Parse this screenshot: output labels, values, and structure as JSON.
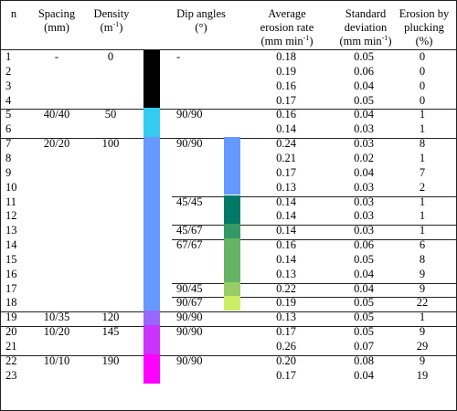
{
  "headers": {
    "n": "n",
    "spacing": [
      "Spacing",
      "(mm)"
    ],
    "density": [
      "Density",
      "(m",
      "-1",
      ")"
    ],
    "dip": [
      "Dip angles",
      "(°)"
    ],
    "avg": [
      "Average",
      "erosion rate",
      "(mm min",
      "-1",
      ")"
    ],
    "std": [
      "Standard",
      "deviation",
      "(mm min",
      "-1",
      ")"
    ],
    "pluck": [
      "Erosion by",
      "plucking",
      "(%)"
    ]
  },
  "rows": [
    {
      "n": "1",
      "spacing": "-",
      "density": "0",
      "dip": "-",
      "avg": "0.18",
      "std": "0.05",
      "pluck": "0"
    },
    {
      "n": "2",
      "spacing": "",
      "density": "",
      "dip": "",
      "avg": "0.19",
      "std": "0.06",
      "pluck": "0"
    },
    {
      "n": "3",
      "spacing": "",
      "density": "",
      "dip": "",
      "avg": "0.16",
      "std": "0.04",
      "pluck": "0"
    },
    {
      "n": "4",
      "spacing": "",
      "density": "",
      "dip": "",
      "avg": "0.17",
      "std": "0.05",
      "pluck": "0"
    },
    {
      "n": "5",
      "spacing": "40/40",
      "density": "50",
      "dip": "90/90",
      "avg": "0.16",
      "std": "0.04",
      "pluck": "1"
    },
    {
      "n": "6",
      "spacing": "",
      "density": "",
      "dip": "",
      "avg": "0.14",
      "std": "0.03",
      "pluck": "1"
    },
    {
      "n": "7",
      "spacing": "20/20",
      "density": "100",
      "dip": "90/90",
      "avg": "0.24",
      "std": "0.03",
      "pluck": "8"
    },
    {
      "n": "8",
      "spacing": "",
      "density": "",
      "dip": "",
      "avg": "0.21",
      "std": "0.02",
      "pluck": "1"
    },
    {
      "n": "9",
      "spacing": "",
      "density": "",
      "dip": "",
      "avg": "0.17",
      "std": "0.04",
      "pluck": "7"
    },
    {
      "n": "10",
      "spacing": "",
      "density": "",
      "dip": "",
      "avg": "0.13",
      "std": "0.03",
      "pluck": "2"
    },
    {
      "n": "11",
      "spacing": "",
      "density": "",
      "dip": "45/45",
      "avg": "0.14",
      "std": "0.03",
      "pluck": "1"
    },
    {
      "n": "12",
      "spacing": "",
      "density": "",
      "dip": "",
      "avg": "0.14",
      "std": "0.03",
      "pluck": "1"
    },
    {
      "n": "13",
      "spacing": "",
      "density": "",
      "dip": "45/67",
      "avg": "0.14",
      "std": "0.03",
      "pluck": "1"
    },
    {
      "n": "14",
      "spacing": "",
      "density": "",
      "dip": "67/67",
      "avg": "0.16",
      "std": "0.06",
      "pluck": "6"
    },
    {
      "n": "15",
      "spacing": "",
      "density": "",
      "dip": "",
      "avg": "0.14",
      "std": "0.05",
      "pluck": "8"
    },
    {
      "n": "16",
      "spacing": "",
      "density": "",
      "dip": "",
      "avg": "0.13",
      "std": "0.04",
      "pluck": "9"
    },
    {
      "n": "17",
      "spacing": "",
      "density": "",
      "dip": "90/45",
      "avg": "0.22",
      "std": "0.04",
      "pluck": "9"
    },
    {
      "n": "18",
      "spacing": "",
      "density": "",
      "dip": "90/67",
      "avg": "0.19",
      "std": "0.05",
      "pluck": "22"
    },
    {
      "n": "19",
      "spacing": "10/35",
      "density": "120",
      "dip": "90/90",
      "avg": "0.13",
      "std": "0.05",
      "pluck": "1"
    },
    {
      "n": "20",
      "spacing": "10/20",
      "density": "145",
      "dip": "90/90",
      "avg": "0.17",
      "std": "0.05",
      "pluck": "9"
    },
    {
      "n": "21",
      "spacing": "",
      "density": "",
      "dip": "",
      "avg": "0.26",
      "std": "0.07",
      "pluck": "29"
    },
    {
      "n": "22",
      "spacing": "10/10",
      "density": "190",
      "dip": "90/90",
      "avg": "0.20",
      "std": "0.08",
      "pluck": "9"
    },
    {
      "n": "23",
      "spacing": "",
      "density": "",
      "dip": "",
      "avg": "0.17",
      "std": "0.04",
      "pluck": "19"
    }
  ],
  "density_colors": [
    {
      "rows": [
        1,
        4
      ],
      "color": "#000000"
    },
    {
      "rows": [
        5,
        6
      ],
      "color": "#33ccf0"
    },
    {
      "rows": [
        7,
        18
      ],
      "color": "#6699ff"
    },
    {
      "rows": [
        19,
        19
      ],
      "color": "#9966ff"
    },
    {
      "rows": [
        20,
        21
      ],
      "color": "#cc33ff"
    },
    {
      "rows": [
        22,
        23
      ],
      "color": "#ff00ff"
    }
  ],
  "dip_colors": [
    {
      "rows": [
        7,
        10
      ],
      "color": "#6699ff"
    },
    {
      "rows": [
        11,
        12
      ],
      "color": "#007a66"
    },
    {
      "rows": [
        13,
        13
      ],
      "color": "#339966"
    },
    {
      "rows": [
        14,
        16
      ],
      "color": "#66b366"
    },
    {
      "rows": [
        17,
        17
      ],
      "color": "#99cc66"
    },
    {
      "rows": [
        18,
        18
      ],
      "color": "#ccee66"
    }
  ]
}
